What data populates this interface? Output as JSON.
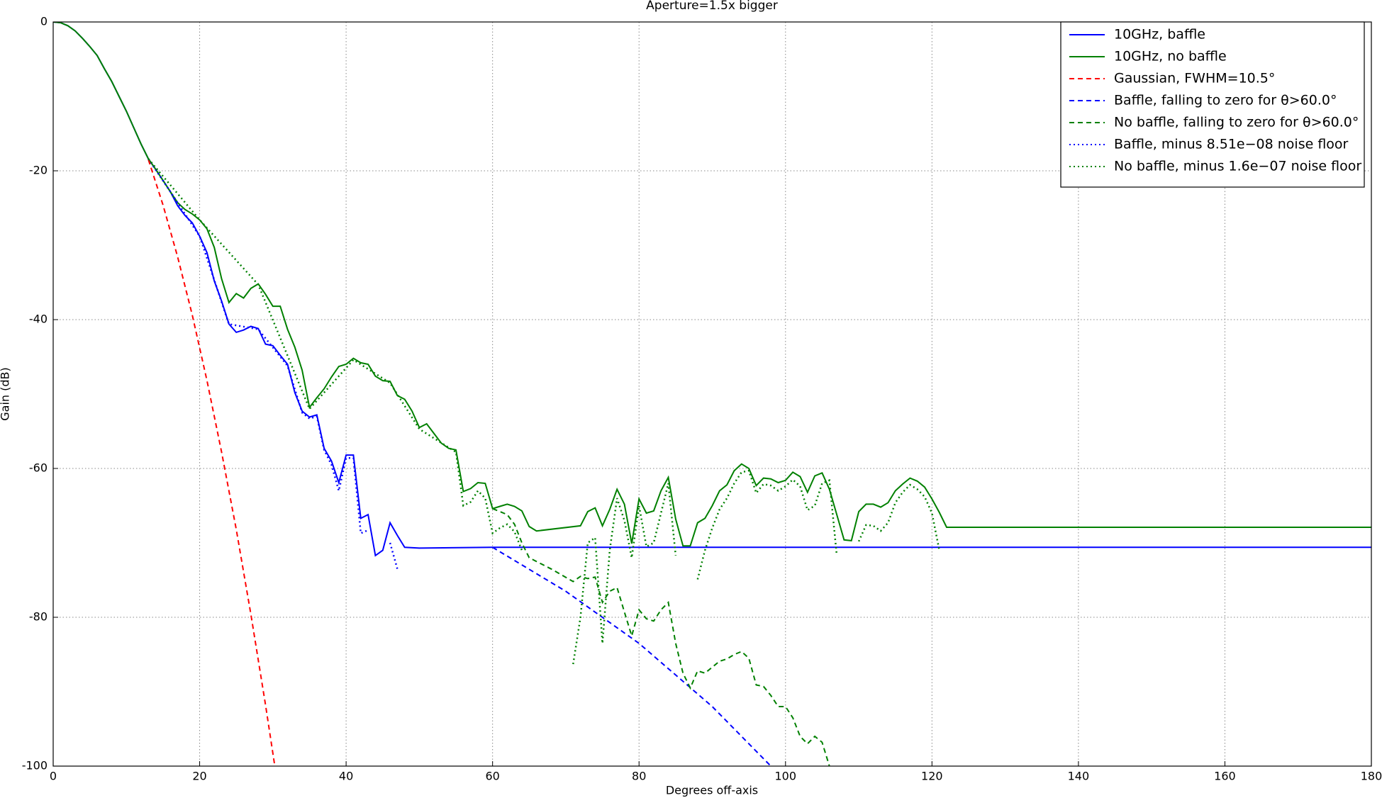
{
  "chart_data": {
    "type": "line",
    "title": "Aperture=1.5x bigger",
    "x_label": "Degrees off-axis",
    "y_label": "Gain (dB)",
    "xlim": [
      0,
      180
    ],
    "ylim": [
      -100,
      0
    ],
    "xticks": [
      0,
      20,
      40,
      60,
      80,
      100,
      120,
      140,
      160,
      180
    ],
    "yticks": [
      -100,
      -80,
      -60,
      -40,
      -20,
      0
    ],
    "grid": true,
    "legend": "upper right",
    "series": [
      {
        "name": "10GHz, baffle",
        "color": "#0000ff",
        "style": "solid",
        "x": [
          0,
          1,
          2,
          3,
          4,
          5,
          6,
          7,
          8,
          9,
          10,
          11,
          12,
          13,
          14,
          15,
          16,
          17,
          18,
          19,
          20,
          21,
          22,
          23,
          24,
          25,
          26,
          27,
          28,
          29,
          30,
          31,
          32,
          33,
          34,
          35,
          36,
          37,
          38,
          39,
          40,
          41,
          42,
          43,
          44,
          45,
          46,
          47,
          48,
          50,
          60,
          180
        ],
        "values": [
          0,
          -0.1,
          -0.5,
          -1.2,
          -2.2,
          -3.3,
          -4.5,
          -6.3,
          -8,
          -10,
          -12,
          -14.2,
          -16.4,
          -18.4,
          -19.8,
          -21.3,
          -22.8,
          -24.7,
          -26,
          -27,
          -28.8,
          -31,
          -34.8,
          -37.5,
          -40.6,
          -41.7,
          -41.4,
          -40.9,
          -41.2,
          -43.3,
          -43.5,
          -44.8,
          -46,
          -49.8,
          -52.3,
          -53.1,
          -52.8,
          -57.3,
          -59,
          -61.9,
          -58.2,
          -58.2,
          -66.7,
          -66.2,
          -71.7,
          -71,
          -67.3,
          -69,
          -70.6,
          -70.7,
          -70.6,
          -70.6
        ]
      },
      {
        "name": "10GHz, no baffle",
        "color": "#008000",
        "style": "solid",
        "x": [
          0,
          1,
          2,
          3,
          4,
          5,
          6,
          7,
          8,
          9,
          10,
          11,
          12,
          13,
          14,
          15,
          16,
          17,
          18,
          19,
          20,
          21,
          22,
          23,
          24,
          25,
          26,
          27,
          28,
          29,
          30,
          31,
          32,
          33,
          34,
          35,
          36,
          37,
          38,
          39,
          40,
          41,
          42,
          43,
          44,
          45,
          46,
          47,
          48,
          49,
          50,
          51,
          52,
          53,
          54,
          55,
          56,
          57,
          58,
          59,
          60,
          61,
          62,
          63,
          64,
          65,
          66,
          72,
          73,
          74,
          75,
          76,
          77,
          78,
          79,
          80,
          81,
          82,
          83,
          84,
          85,
          86,
          87,
          88,
          89,
          90,
          91,
          92,
          93,
          94,
          95,
          96,
          97,
          98,
          99,
          100,
          101,
          102,
          103,
          104,
          105,
          106,
          107,
          108,
          109,
          110,
          111,
          112,
          113,
          114,
          115,
          116,
          117,
          118,
          119,
          120,
          121,
          122,
          180
        ],
        "values": [
          0,
          -0.1,
          -0.5,
          -1.2,
          -2.2,
          -3.3,
          -4.5,
          -6.3,
          -8,
          -10,
          -12,
          -14.2,
          -16.4,
          -18.4,
          -19.8,
          -21.3,
          -22.8,
          -24.3,
          -25.2,
          -25.8,
          -26.6,
          -27.8,
          -30.3,
          -34.5,
          -37.7,
          -36.5,
          -37.1,
          -35.8,
          -35.2,
          -36.6,
          -38.2,
          -38.2,
          -41.3,
          -43.7,
          -46.8,
          -51.8,
          -50.5,
          -49.3,
          -47.7,
          -46.3,
          -46,
          -45.2,
          -45.8,
          -46,
          -47.6,
          -48.2,
          -48.3,
          -50.2,
          -50.7,
          -52.3,
          -54.5,
          -54,
          -55.3,
          -56.6,
          -57.3,
          -57.5,
          -63.1,
          -62.7,
          -61.9,
          -62,
          -65.4,
          -65.1,
          -64.8,
          -65.1,
          -65.7,
          -67.8,
          -68.4,
          -67.7,
          -65.8,
          -65.3,
          -67.7,
          -65.5,
          -62.8,
          -64.8,
          -70.1,
          -64.1,
          -66,
          -65.7,
          -63,
          -61.2,
          -66.8,
          -70.4,
          -70.4,
          -67.3,
          -66.7,
          -65,
          -63,
          -62.2,
          -60.3,
          -59.4,
          -60,
          -62.3,
          -61.3,
          -61.4,
          -61.9,
          -61.6,
          -60.5,
          -61.1,
          -63.2,
          -61,
          -60.6,
          -62.8,
          -66.2,
          -69.6,
          -69.7,
          -65.8,
          -64.8,
          -64.8,
          -65.2,
          -64.6,
          -63,
          -62.1,
          -61.3,
          -61.7,
          -62.5,
          -64.1,
          -65.9,
          -67.9,
          -67.9
        ]
      },
      {
        "name": "Gaussian, FWHM=10.5°",
        "color": "#ff0000",
        "style": "dash",
        "x": [
          13,
          15,
          17,
          19,
          21,
          23,
          25,
          27,
          29,
          30.4
        ],
        "values": [
          -18.5,
          -24.6,
          -31.6,
          -39.4,
          -48.2,
          -57.8,
          -68.2,
          -79.6,
          -91.8,
          -100.9
        ]
      },
      {
        "name": "Baffle, falling to zero for θ>60.0°",
        "color": "#0000ff",
        "style": "dash",
        "x": [
          60,
          70,
          80,
          90,
          98
        ],
        "values": [
          -70.6,
          -76.5,
          -83.5,
          -92,
          -100
        ]
      },
      {
        "name": "No baffle, falling to zero for θ>60.0°",
        "color": "#008000",
        "style": "dash",
        "x": [
          60,
          62,
          63,
          64,
          65,
          68,
          71,
          72,
          73,
          74,
          75,
          76,
          77,
          78,
          79,
          80,
          81,
          82,
          83,
          84,
          85,
          86,
          87,
          88,
          89,
          91,
          92,
          93,
          94,
          95,
          96,
          97,
          98,
          99,
          100,
          101,
          102,
          103,
          104,
          105,
          106
        ],
        "values": [
          -65.4,
          -66.2,
          -67.5,
          -70,
          -72,
          -73.5,
          -75.2,
          -74.5,
          -74.8,
          -74.6,
          -78,
          -76.5,
          -76,
          -79.3,
          -82.5,
          -79,
          -80.2,
          -80.5,
          -79,
          -78,
          -83.5,
          -87.5,
          -89.5,
          -87.2,
          -87.5,
          -85.9,
          -85.6,
          -85,
          -84.6,
          -85.5,
          -89.1,
          -89.3,
          -90.5,
          -92,
          -92,
          -93.5,
          -96,
          -97,
          -96,
          -96.8,
          -100
        ]
      },
      {
        "name": "Baffle, minus 8.51e−08 noise floor",
        "color": "#0000ff",
        "style": "dot",
        "x": [
          13,
          16,
          20,
          24,
          28,
          32,
          34,
          35,
          36,
          37,
          38,
          39,
          40,
          41,
          42,
          43,
          44,
          46,
          47
        ],
        "values": [
          -18.4,
          -22.8,
          -28.8,
          -40.6,
          -41.3,
          -46.2,
          -52.5,
          -53.3,
          -53,
          -57.5,
          -59.5,
          -63,
          -58.6,
          -58.6,
          -68.7,
          -68.3,
          null,
          -70,
          -73.5
        ]
      },
      {
        "name": "No baffle, minus 1.6e−07 noise floor",
        "color": "#008000",
        "style": "dot",
        "x": [
          13,
          20,
          28,
          35,
          41,
          46,
          50,
          55,
          56,
          57,
          58,
          59,
          60,
          61,
          62,
          63,
          64,
          65,
          71,
          72,
          73,
          74,
          75,
          76,
          77,
          78,
          79,
          80,
          81,
          82,
          83,
          84,
          85,
          86,
          88,
          89,
          90,
          91,
          92,
          93,
          94,
          95,
          96,
          97,
          98,
          99,
          100,
          101,
          102,
          103,
          104,
          105,
          106,
          107,
          108,
          110,
          111,
          112,
          113,
          114,
          115,
          116,
          117,
          118,
          119,
          120,
          121
        ],
        "values": [
          -18.4,
          -26.6,
          -35.3,
          -52,
          -45.4,
          -48.5,
          -54.7,
          -57.8,
          -65,
          -64.5,
          -63,
          -64,
          -68.7,
          -68,
          -67.5,
          -68.5,
          -71,
          null,
          -86.3,
          -80,
          -70,
          -69.3,
          -83.5,
          -71,
          -64,
          -67,
          -72,
          -65,
          -70.5,
          -70,
          -66,
          -62,
          -71.7,
          null,
          -74.9,
          -71,
          -68,
          -65.5,
          -64,
          -62,
          -60.5,
          -60.3,
          -63.3,
          -62.1,
          -62.3,
          -63,
          -62.4,
          -61.5,
          -62.4,
          -65.6,
          -65,
          -62,
          -61.6,
          -71.7,
          null,
          -69.8,
          -67.6,
          -67.7,
          -68.4,
          -67.3,
          -64.6,
          -63.2,
          -62.2,
          -62.8,
          -63.8,
          -66,
          -71
        ]
      }
    ]
  }
}
